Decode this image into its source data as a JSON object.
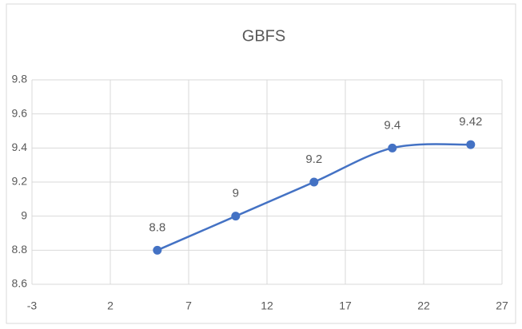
{
  "chart_data": {
    "type": "line",
    "title": "GBFS",
    "x": [
      5,
      10,
      15,
      20,
      25
    ],
    "series": [
      {
        "name": "GBFS",
        "color": "#4472c4",
        "values": [
          8.8,
          9,
          9.2,
          9.4,
          9.42
        ]
      }
    ],
    "xlim": [
      -3,
      27
    ],
    "xticks": [
      -3,
      2,
      7,
      12,
      17,
      22,
      27
    ],
    "ylim": [
      8.6,
      9.8
    ],
    "yticks": [
      8.6,
      8.8,
      9,
      9.2,
      9.4,
      9.6,
      9.8
    ],
    "grid": true,
    "smooth": true,
    "data_labels": true
  }
}
